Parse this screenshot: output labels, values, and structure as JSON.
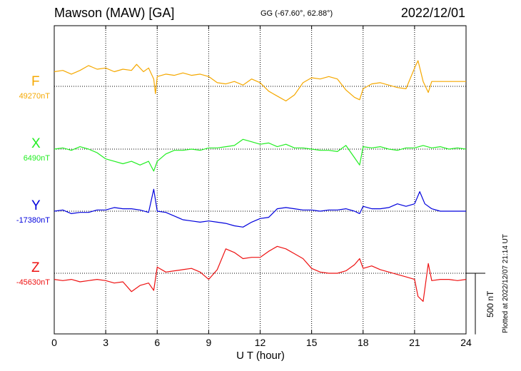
{
  "header": {
    "title": "Mawson (MAW)  [GA]",
    "coords": "GG (-67.60°,  62.88°)",
    "date": "2022/12/01"
  },
  "footer": {
    "xlabel": "U T (hour)",
    "plotted": "Plotted at 2022/12/07 21:14 UT",
    "scale_label": "500 nT"
  },
  "chart_data": {
    "type": "line",
    "title": "Mawson (MAW)  [GA]",
    "xlabel": "U T (hour)",
    "ylabel": "",
    "xlim": [
      0,
      24
    ],
    "x_ticks": [
      "0",
      "3",
      "6",
      "9",
      "12",
      "15",
      "18",
      "21",
      "24"
    ],
    "grid": true,
    "scale_bar_nT": 500,
    "series": [
      {
        "name": "F",
        "baseline_label": "49270nT",
        "color": "#f5a800",
        "x": [
          0,
          0.5,
          1,
          1.5,
          2,
          2.5,
          3,
          3.5,
          4,
          4.5,
          4.8,
          5.2,
          5.5,
          5.8,
          5.9,
          6.0,
          6.5,
          7,
          7.5,
          8,
          8.5,
          9,
          9.5,
          10,
          10.5,
          11,
          11.5,
          12,
          12.5,
          13,
          13.5,
          14,
          14.5,
          15,
          15.5,
          16,
          16.5,
          17,
          17.5,
          17.8,
          18,
          18.5,
          19,
          19.5,
          20,
          20.5,
          21,
          21.2,
          21.5,
          21.8,
          22,
          22.5,
          23,
          23.5,
          24
        ],
        "values": [
          120,
          130,
          100,
          130,
          170,
          140,
          150,
          120,
          140,
          130,
          180,
          120,
          150,
          60,
          -60,
          80,
          100,
          90,
          110,
          90,
          100,
          80,
          30,
          20,
          40,
          10,
          60,
          30,
          -40,
          -80,
          -120,
          -70,
          30,
          70,
          60,
          80,
          60,
          -30,
          -90,
          -110,
          -20,
          20,
          30,
          10,
          -10,
          -20,
          150,
          210,
          40,
          -50,
          40,
          40,
          40,
          40,
          40
        ]
      },
      {
        "name": "X",
        "baseline_label": "6490nT",
        "color": "#22ee22",
        "x": [
          0,
          0.5,
          1,
          1.5,
          2,
          2.5,
          3,
          3.5,
          4,
          4.5,
          5,
          5.5,
          5.8,
          6.0,
          6.5,
          7,
          7.5,
          8,
          8.5,
          9,
          9.5,
          10,
          10.5,
          11,
          11.5,
          12,
          12.5,
          13,
          13.5,
          14,
          14.5,
          15,
          15.5,
          16,
          16.5,
          17,
          17.5,
          17.8,
          18,
          18.5,
          19,
          19.5,
          20,
          20.5,
          21,
          21.5,
          22,
          22.5,
          23,
          23.5,
          24
        ],
        "values": [
          0,
          10,
          -10,
          20,
          0,
          -30,
          -80,
          -100,
          -120,
          -100,
          -130,
          -100,
          -180,
          -100,
          -40,
          -10,
          -10,
          0,
          -10,
          10,
          10,
          20,
          30,
          80,
          60,
          40,
          50,
          20,
          40,
          10,
          10,
          0,
          -10,
          -10,
          -20,
          30,
          -70,
          -130,
          20,
          10,
          20,
          0,
          -10,
          10,
          10,
          30,
          10,
          20,
          0,
          10,
          0
        ]
      },
      {
        "name": "Y",
        "baseline_label": "-17380nT",
        "color": "#0000dd",
        "x": [
          0,
          0.5,
          1,
          1.5,
          2,
          2.5,
          3,
          3.5,
          4,
          4.5,
          5,
          5.5,
          5.8,
          6.0,
          6.5,
          7,
          7.5,
          8,
          8.5,
          9,
          9.5,
          10,
          10.5,
          11,
          11.5,
          12,
          12.5,
          13,
          13.5,
          14,
          14.5,
          15,
          15.5,
          16,
          16.5,
          17,
          17.5,
          17.8,
          18,
          18.5,
          19,
          19.5,
          20,
          20.5,
          21,
          21.3,
          21.6,
          22,
          22.5,
          23,
          23.5,
          24
        ],
        "values": [
          0,
          10,
          -20,
          -10,
          -10,
          10,
          10,
          30,
          20,
          20,
          10,
          -10,
          180,
          0,
          -10,
          -40,
          -70,
          -80,
          -90,
          -80,
          -90,
          -100,
          -120,
          -130,
          -90,
          -60,
          -50,
          20,
          30,
          20,
          10,
          10,
          0,
          10,
          10,
          20,
          0,
          -20,
          40,
          20,
          20,
          30,
          60,
          40,
          60,
          160,
          60,
          20,
          0,
          0,
          0,
          0
        ]
      },
      {
        "name": "Z",
        "baseline_label": "-45630nT",
        "color": "#ee1111",
        "x": [
          0,
          0.5,
          1,
          1.5,
          2,
          2.5,
          3,
          3.5,
          4,
          4.5,
          5,
          5.5,
          5.8,
          6.0,
          6.5,
          7,
          7.5,
          8,
          8.5,
          9,
          9.5,
          10,
          10.5,
          11,
          11.5,
          12,
          12.5,
          13,
          13.5,
          14,
          14.5,
          15,
          15.5,
          16,
          16.5,
          17,
          17.5,
          17.8,
          18,
          18.5,
          19,
          19.5,
          20,
          20.5,
          21,
          21.2,
          21.5,
          21.8,
          22,
          22.5,
          23,
          23.5,
          24
        ],
        "values": [
          -50,
          -60,
          -50,
          -70,
          -60,
          -50,
          -60,
          -80,
          -70,
          -150,
          -100,
          -80,
          -140,
          50,
          10,
          20,
          30,
          40,
          10,
          -50,
          30,
          200,
          170,
          120,
          130,
          130,
          180,
          220,
          200,
          160,
          120,
          40,
          10,
          0,
          0,
          20,
          70,
          120,
          40,
          60,
          30,
          10,
          -10,
          -30,
          -50,
          -190,
          -230,
          80,
          -60,
          -50,
          -50,
          -60,
          -50
        ]
      }
    ]
  }
}
